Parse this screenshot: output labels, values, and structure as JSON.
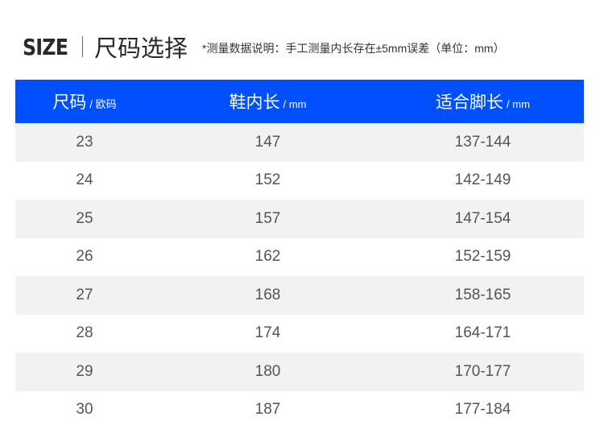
{
  "header": {
    "size_logo": "SIZE",
    "title": "尺码选择",
    "note": "*测量数据说明：手工测量内长存在±5mm误差（单位：mm）"
  },
  "colors": {
    "header_bg": "#0050ff",
    "row_alt": "#f2f2f2"
  },
  "table": {
    "columns": [
      {
        "label": "尺码",
        "unit": "/ 欧码"
      },
      {
        "label": "鞋内长",
        "unit": "/ mm"
      },
      {
        "label": "适合脚长",
        "unit": "/ mm"
      }
    ],
    "rows": [
      [
        "23",
        "147",
        "137-144"
      ],
      [
        "24",
        "152",
        "142-149"
      ],
      [
        "25",
        "157",
        "147-154"
      ],
      [
        "26",
        "162",
        "152-159"
      ],
      [
        "27",
        "168",
        "158-165"
      ],
      [
        "28",
        "174",
        "164-171"
      ],
      [
        "29",
        "180",
        "170-177"
      ],
      [
        "30",
        "187",
        "177-184"
      ]
    ]
  }
}
